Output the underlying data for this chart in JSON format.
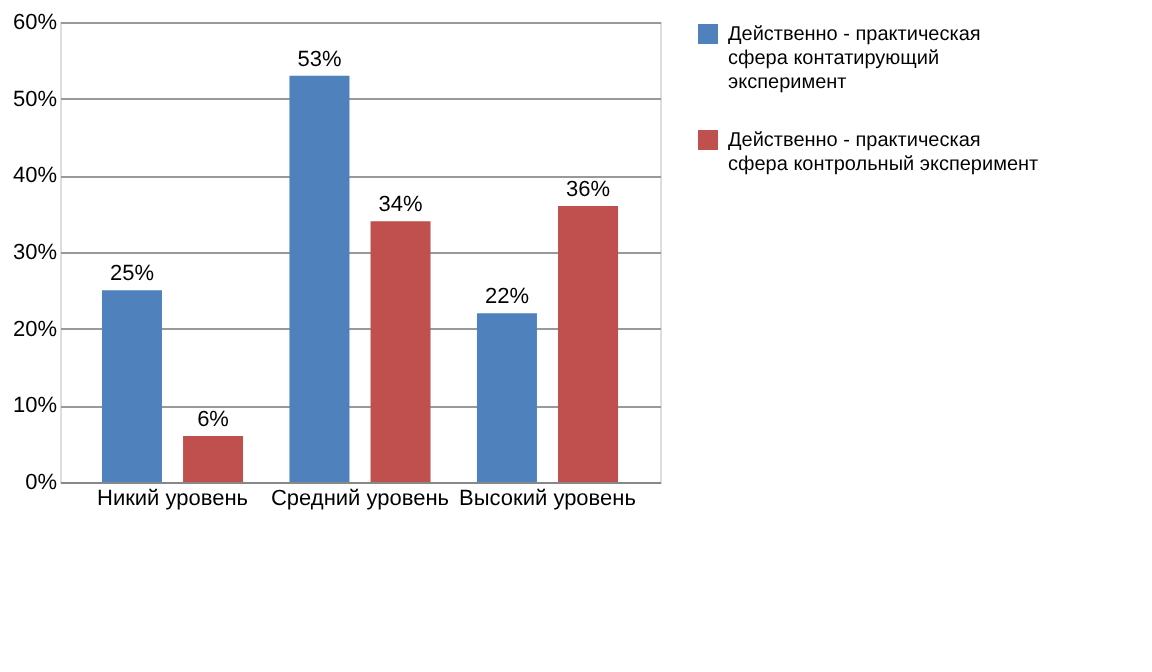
{
  "chart_data": {
    "type": "bar",
    "categories": [
      "Никий уровень",
      "Средний уровень",
      "Высокий уровень"
    ],
    "series": [
      {
        "name": "Действенно - практическая сфера контатирующий эксперимент",
        "color": "#4f81bd",
        "values": [
          25,
          53,
          22
        ],
        "value_labels": [
          "25%",
          "53%",
          "22%"
        ]
      },
      {
        "name": "Действенно - практическая сфера контрольный эксперимент",
        "color": "#c0504d",
        "values": [
          6,
          34,
          36
        ],
        "value_labels": [
          "6%",
          "34%",
          "36%"
        ]
      }
    ],
    "ylim": [
      0,
      60
    ],
    "yticks": [
      {
        "value": 0,
        "label": "0%"
      },
      {
        "value": 10,
        "label": "10%"
      },
      {
        "value": 20,
        "label": "20%"
      },
      {
        "value": 30,
        "label": "30%"
      },
      {
        "value": 40,
        "label": "40%"
      },
      {
        "value": 50,
        "label": "50%"
      },
      {
        "value": 60,
        "label": "60%"
      }
    ],
    "grid": "y",
    "legend": "right"
  }
}
